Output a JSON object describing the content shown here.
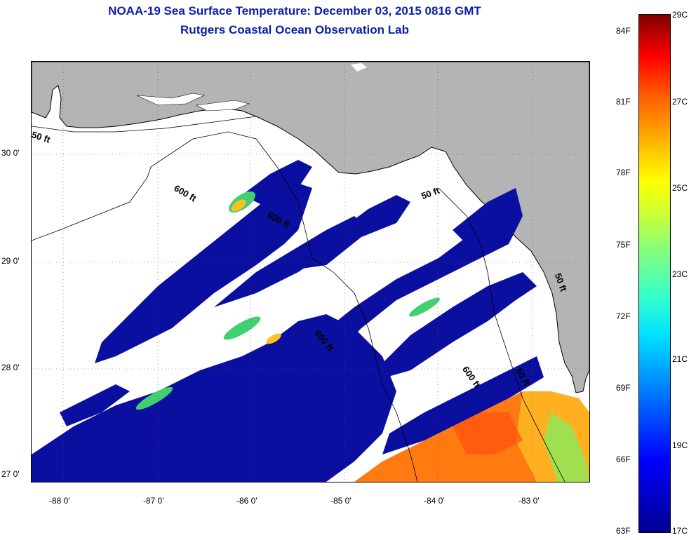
{
  "title": {
    "line1": "NOAA-19 Sea Surface Temperature:  December 03, 2015 0816 GMT",
    "line2": "Rutgers Coastal Ocean Observation Lab"
  },
  "axes": {
    "lat_ticks": [
      "30 0'",
      "29 0'",
      "28 0'",
      "27 0'"
    ],
    "lon_ticks": [
      "-88 0'",
      "-87 0'",
      "-86 0'",
      "-85 0'",
      "-84 0'",
      "-83 0'"
    ]
  },
  "colorbar": {
    "fahrenheit": [
      "84F",
      "81F",
      "78F",
      "75F",
      "72F",
      "69F",
      "66F",
      "63F"
    ],
    "celsius": [
      "29C",
      "27C",
      "25C",
      "23C",
      "21C",
      "19C",
      "17C"
    ],
    "range_c": [
      17,
      29
    ]
  },
  "contours": {
    "c50_west": "50 ft",
    "c600_west": "600 ft",
    "c600_mid": "600 ft",
    "c50_east": "50 ft",
    "c600_south": "600 ft",
    "c600_se": "600 ft",
    "c50_se": "50 ft",
    "c50_coast": "50 ft"
  },
  "colors": {
    "land": "#b4b4b4",
    "cloud": "#ffffff",
    "cold_water": "#0b0fa0",
    "title": "#0b1fa6"
  }
}
